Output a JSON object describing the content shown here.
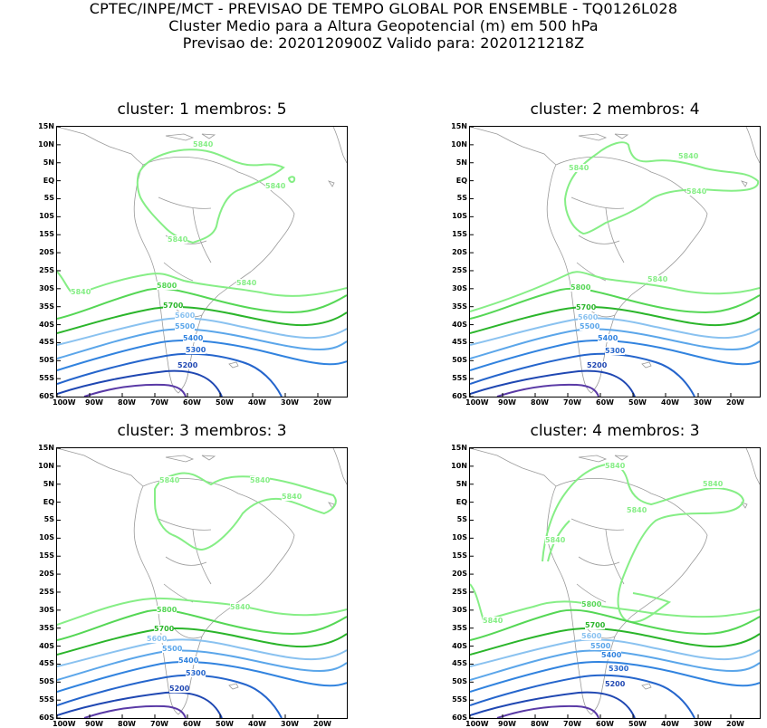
{
  "header": {
    "line1": "CPTEC/INPE/MCT - PREVISAO DE TEMPO GLOBAL POR ENSEMBLE - TQ0126L028",
    "line2": "Cluster Medio para a Altura Geopotencial (m) em 500 hPa",
    "line3": "Previsao de: 2020120900Z    Valido para: 2020121218Z"
  },
  "lat_labels": [
    "15N",
    "10N",
    "5N",
    "EQ",
    "5S",
    "10S",
    "15S",
    "20S",
    "25S",
    "30S",
    "35S",
    "40S",
    "45S",
    "50S",
    "55S",
    "60S"
  ],
  "lon_labels": [
    "100W",
    "90W",
    "80W",
    "70W",
    "60W",
    "50W",
    "40W",
    "30W",
    "20W"
  ],
  "contour_colors": {
    "5840": "#86ee86",
    "5800": "#55d755",
    "5700": "#2bb52b",
    "5600": "#8ac2f0",
    "5500": "#5ba6ea",
    "5400": "#3183df",
    "5300": "#2565cc",
    "5200": "#1f47b2",
    "5100": "#5a3aa6",
    "coast": "#9a9a9a"
  },
  "panels": [
    {
      "title": "cluster: 1   membros: 5",
      "labels": {
        "l5840a": "5840",
        "l5840b": "5840",
        "l5840c": "5840",
        "l5840d": "5840",
        "l5840e": "5840",
        "l5800": "5800",
        "l5700": "5700",
        "l5600": "5600",
        "l5500": "5500",
        "l5400": "5400",
        "l5300": "5300",
        "l5200": "5200"
      }
    },
    {
      "title": "cluster: 2   membros: 4",
      "labels": {
        "l5840a": "5840",
        "l5840b": "5840",
        "l5840c": "5840",
        "l5840d": "5840",
        "l5800": "5800",
        "l5700": "5700",
        "l5600": "5600",
        "l5500": "5500",
        "l5400": "5400",
        "l5300": "5300",
        "l5200": "5200"
      }
    },
    {
      "title": "cluster: 3   membros: 3",
      "labels": {
        "l5840a": "5840",
        "l5840b": "5840",
        "l5840c": "5840",
        "l5840d": "5840",
        "l5800": "5800",
        "l5700": "5700",
        "l5600": "5600",
        "l5500": "5500",
        "l5400": "5400",
        "l5300": "5300",
        "l5200": "5200"
      }
    },
    {
      "title": "cluster: 4   membros: 3",
      "labels": {
        "l5840a": "5840",
        "l5840b": "5840",
        "l5840c": "5840",
        "l5840d": "5840",
        "l5840e": "5840",
        "l5800": "5800",
        "l5700": "5700",
        "l5600": "5600",
        "l5500": "5500",
        "l5400": "5400",
        "l5300": "5300",
        "l5200": "5200"
      }
    }
  ]
}
